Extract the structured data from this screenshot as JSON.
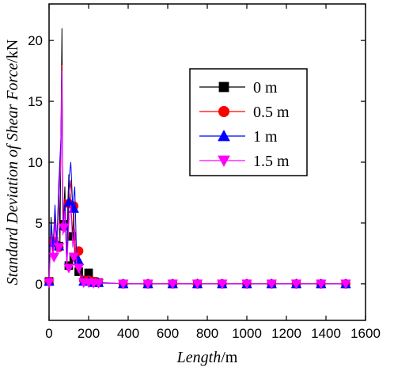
{
  "chart_data": {
    "type": "line",
    "xlabel": {
      "italic": "Length",
      "unit": "/m"
    },
    "ylabel": {
      "italic": "Standard Deviation of Shear Force",
      "unit": "/kN"
    },
    "xlim": [
      0,
      1600
    ],
    "ylim": [
      -3,
      23
    ],
    "x_ticks": [
      0,
      200,
      400,
      600,
      800,
      1000,
      1200,
      1400,
      1600
    ],
    "y_ticks": [
      0,
      5,
      10,
      15,
      20
    ],
    "legend_position": "center-right",
    "series": [
      {
        "name": "0 m",
        "color": "#000000",
        "marker": "square",
        "points": [
          [
            0,
            0.2
          ],
          [
            10,
            5.5
          ],
          [
            20,
            3.0
          ],
          [
            30,
            6.0
          ],
          [
            40,
            3.5
          ],
          [
            50,
            8.6
          ],
          [
            55,
            3.0
          ],
          [
            60,
            12.0
          ],
          [
            65,
            21.0
          ],
          [
            70,
            4.6
          ],
          [
            80,
            8.0
          ],
          [
            90,
            1.6
          ],
          [
            95,
            6.7
          ],
          [
            100,
            9.0
          ],
          [
            110,
            6.5
          ],
          [
            120,
            3.9
          ],
          [
            125,
            6.4
          ],
          [
            130,
            1.6
          ],
          [
            140,
            1.0
          ],
          [
            150,
            2.5
          ],
          [
            160,
            1.0
          ],
          [
            175,
            0.2
          ],
          [
            200,
            0.9
          ],
          [
            225,
            0.2
          ],
          [
            250,
            0.1
          ],
          [
            300,
            0.05
          ],
          [
            375,
            0
          ],
          [
            500,
            0
          ],
          [
            625,
            0
          ],
          [
            750,
            0
          ],
          [
            875,
            0
          ],
          [
            1000,
            0
          ],
          [
            1125,
            0
          ],
          [
            1250,
            0
          ],
          [
            1375,
            0
          ],
          [
            1500,
            0
          ]
        ],
        "marker_points": [
          [
            0,
            0.2
          ],
          [
            25,
            3.5
          ],
          [
            50,
            3.1
          ],
          [
            75,
            4.9
          ],
          [
            100,
            1.5
          ],
          [
            115,
            3.9
          ],
          [
            125,
            2.2
          ],
          [
            150,
            1.0
          ],
          [
            200,
            0.9
          ],
          [
            225,
            0.2
          ],
          [
            250,
            0.1
          ],
          [
            375,
            0
          ],
          [
            500,
            0
          ],
          [
            625,
            0
          ],
          [
            750,
            0
          ],
          [
            875,
            0
          ],
          [
            1000,
            0
          ],
          [
            1125,
            0
          ],
          [
            1250,
            0
          ],
          [
            1375,
            0
          ],
          [
            1500,
            0
          ]
        ]
      },
      {
        "name": "0.5 m",
        "color": "#ff0000",
        "marker": "circle",
        "points": [
          [
            0,
            0.2
          ],
          [
            10,
            4.5
          ],
          [
            20,
            2.5
          ],
          [
            30,
            5.5
          ],
          [
            40,
            3.0
          ],
          [
            50,
            7.5
          ],
          [
            60,
            11.0
          ],
          [
            65,
            18.0
          ],
          [
            70,
            4.5
          ],
          [
            80,
            7.0
          ],
          [
            90,
            1.4
          ],
          [
            100,
            6.5
          ],
          [
            110,
            8.5
          ],
          [
            120,
            6.4
          ],
          [
            130,
            3.0
          ],
          [
            140,
            1.5
          ],
          [
            150,
            2.7
          ],
          [
            160,
            0.8
          ],
          [
            175,
            0.3
          ],
          [
            200,
            0.3
          ],
          [
            225,
            0.2
          ],
          [
            250,
            0.1
          ],
          [
            375,
            0
          ],
          [
            500,
            0
          ],
          [
            625,
            0
          ],
          [
            750,
            0
          ],
          [
            875,
            0
          ],
          [
            1000,
            0
          ],
          [
            1125,
            0
          ],
          [
            1250,
            0
          ],
          [
            1375,
            0
          ],
          [
            1500,
            0
          ]
        ],
        "marker_points": [
          [
            0,
            0.2
          ],
          [
            25,
            3.5
          ],
          [
            50,
            3.0
          ],
          [
            75,
            4.7
          ],
          [
            100,
            6.6
          ],
          [
            125,
            6.4
          ],
          [
            150,
            2.7
          ],
          [
            175,
            0.3
          ],
          [
            200,
            0.3
          ],
          [
            225,
            0.2
          ],
          [
            250,
            0.1
          ],
          [
            375,
            0
          ],
          [
            500,
            0
          ],
          [
            625,
            0
          ],
          [
            750,
            0
          ],
          [
            875,
            0
          ],
          [
            1000,
            0
          ],
          [
            1125,
            0
          ],
          [
            1250,
            0
          ],
          [
            1375,
            0
          ],
          [
            1500,
            0
          ]
        ]
      },
      {
        "name": "1 m",
        "color": "#0000ff",
        "marker": "triangle-up",
        "points": [
          [
            0,
            0.2
          ],
          [
            10,
            5.0
          ],
          [
            20,
            2.8
          ],
          [
            30,
            6.5
          ],
          [
            40,
            3.0
          ],
          [
            50,
            8.5
          ],
          [
            60,
            12.0
          ],
          [
            65,
            17.5
          ],
          [
            70,
            4.5
          ],
          [
            80,
            6.5
          ],
          [
            90,
            1.5
          ],
          [
            100,
            8.5
          ],
          [
            110,
            10.0
          ],
          [
            120,
            6.2
          ],
          [
            130,
            8.0
          ],
          [
            140,
            1.8
          ],
          [
            150,
            1.9
          ],
          [
            160,
            0.5
          ],
          [
            175,
            0.2
          ],
          [
            200,
            0.2
          ],
          [
            225,
            0.1
          ],
          [
            250,
            0.1
          ],
          [
            375,
            0
          ],
          [
            500,
            0
          ],
          [
            625,
            0
          ],
          [
            750,
            0
          ],
          [
            875,
            0
          ],
          [
            1000,
            0
          ],
          [
            1125,
            0
          ],
          [
            1250,
            0
          ],
          [
            1375,
            0
          ],
          [
            1500,
            0
          ]
        ],
        "marker_points": [
          [
            0,
            0.2
          ],
          [
            25,
            3.4
          ],
          [
            50,
            3.1
          ],
          [
            75,
            4.8
          ],
          [
            100,
            6.7
          ],
          [
            125,
            6.2
          ],
          [
            150,
            1.9
          ],
          [
            175,
            0.2
          ],
          [
            200,
            0.2
          ],
          [
            225,
            0.1
          ],
          [
            250,
            0.1
          ],
          [
            375,
            0
          ],
          [
            500,
            0
          ],
          [
            625,
            0
          ],
          [
            750,
            0
          ],
          [
            875,
            0
          ],
          [
            1000,
            0
          ],
          [
            1125,
            0
          ],
          [
            1250,
            0
          ],
          [
            1375,
            0
          ],
          [
            1500,
            0
          ]
        ]
      },
      {
        "name": "1.5 m",
        "color": "#ff00ff",
        "marker": "triangle-down",
        "points": [
          [
            0,
            0.1
          ],
          [
            10,
            4.0
          ],
          [
            20,
            2.0
          ],
          [
            30,
            5.0
          ],
          [
            40,
            2.5
          ],
          [
            50,
            7.0
          ],
          [
            60,
            10.0
          ],
          [
            65,
            17.5
          ],
          [
            70,
            4.0
          ],
          [
            80,
            6.0
          ],
          [
            90,
            1.2
          ],
          [
            100,
            5.0
          ],
          [
            110,
            6.5
          ],
          [
            120,
            3.0
          ],
          [
            130,
            4.5
          ],
          [
            140,
            1.2
          ],
          [
            150,
            1.3
          ],
          [
            160,
            0.4
          ],
          [
            175,
            0.1
          ],
          [
            200,
            0.1
          ],
          [
            225,
            0.05
          ],
          [
            250,
            0.05
          ],
          [
            375,
            0
          ],
          [
            500,
            0
          ],
          [
            625,
            0
          ],
          [
            750,
            0
          ],
          [
            875,
            0
          ],
          [
            1000,
            0
          ],
          [
            1125,
            0
          ],
          [
            1250,
            0
          ],
          [
            1375,
            0
          ],
          [
            1500,
            0
          ]
        ],
        "marker_points": [
          [
            0,
            0.1
          ],
          [
            25,
            2.2
          ],
          [
            50,
            3.0
          ],
          [
            75,
            4.6
          ],
          [
            100,
            1.3
          ],
          [
            125,
            2.2
          ],
          [
            150,
            1.3
          ],
          [
            175,
            0.1
          ],
          [
            200,
            0.1
          ],
          [
            225,
            0.05
          ],
          [
            250,
            0.05
          ],
          [
            375,
            0
          ],
          [
            500,
            0
          ],
          [
            625,
            0
          ],
          [
            750,
            0
          ],
          [
            875,
            0
          ],
          [
            1000,
            0
          ],
          [
            1125,
            0
          ],
          [
            1250,
            0
          ],
          [
            1375,
            0
          ],
          [
            1500,
            0
          ]
        ]
      }
    ]
  }
}
